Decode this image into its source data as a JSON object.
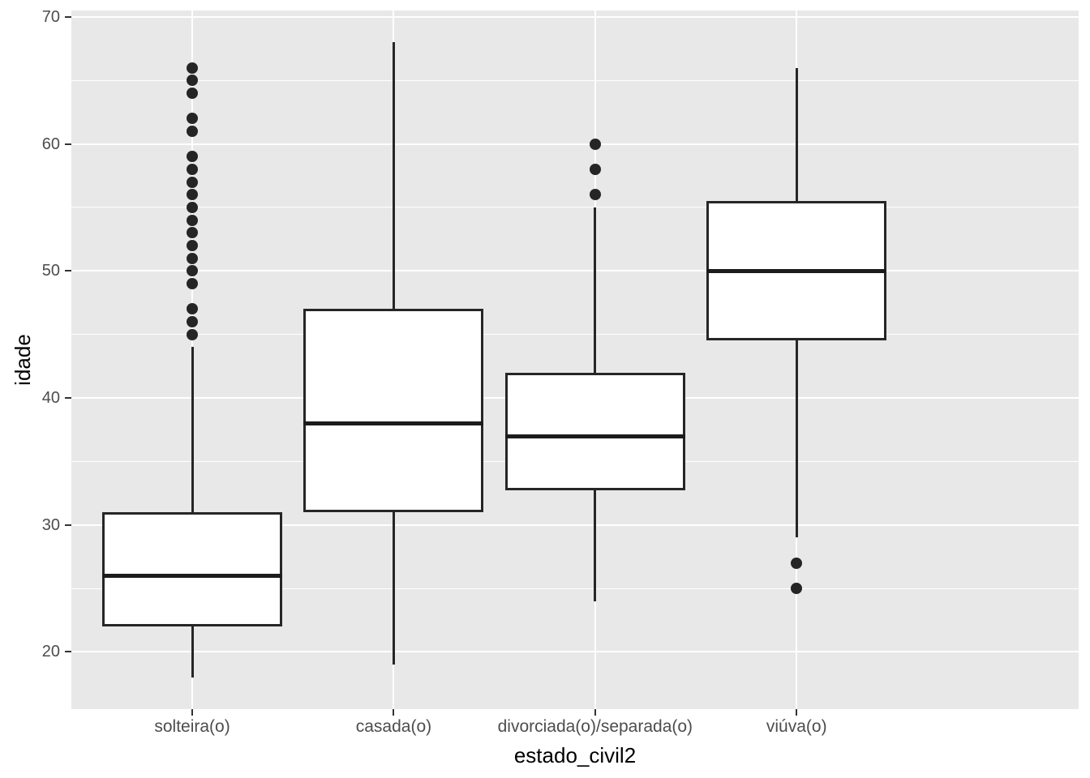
{
  "chart_data": {
    "type": "boxplot",
    "title": "",
    "xlabel": "estado_civil2",
    "ylabel": "idade",
    "ylim": [
      15.5,
      70.5
    ],
    "y_major_ticks": [
      20,
      30,
      40,
      50,
      60,
      70
    ],
    "y_minor_ticks": [
      25,
      35,
      45,
      55,
      65
    ],
    "grid": "on",
    "legend": "none",
    "categories": [
      "solteira(o)",
      "casada(o)",
      "divorciada(o)/separada(o)",
      "viúva(o)"
    ],
    "series": [
      {
        "category": "solteira(o)",
        "whisker_low": 18,
        "q1": 22,
        "median": 26,
        "q3": 31,
        "whisker_high": 44,
        "outliers": [
          45,
          46,
          47,
          49,
          50,
          51,
          52,
          53,
          54,
          55,
          56,
          57,
          58,
          59,
          61,
          62,
          64,
          65,
          66
        ]
      },
      {
        "category": "casada(o)",
        "whisker_low": 19,
        "q1": 31,
        "median": 38,
        "q3": 47,
        "whisker_high": 68,
        "outliers": []
      },
      {
        "category": "divorciada(o)/separada(o)",
        "whisker_low": 24,
        "q1": 32.75,
        "median": 37,
        "q3": 42,
        "whisker_high": 55,
        "outliers": [
          56,
          58,
          60
        ]
      },
      {
        "category": "viúva(o)",
        "whisker_low": 29,
        "q1": 44.5,
        "median": 50,
        "q3": 55.5,
        "whisker_high": 66,
        "outliers": [
          27,
          25
        ]
      }
    ],
    "colors": {
      "panel_bg": "#E8E8E8",
      "grid": "#FFFFFF",
      "box_fill": "#FFFFFF",
      "box_stroke": "#262626",
      "median": "#1C1C1C",
      "outlier": "#252525",
      "tick_label": "#4D4D4D",
      "axis_title": "#000000"
    }
  }
}
